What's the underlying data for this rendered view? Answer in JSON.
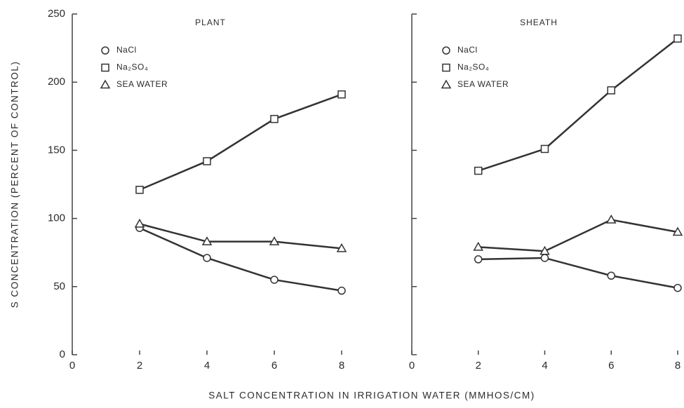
{
  "xlabel": "SALT  CONCENTRATION  IN  IRRIGATION  WATER    (MMHOS/CM)",
  "ylabel": "S  CONCENTRATION   (PERCENT OF CONTROL)",
  "chart_data": [
    {
      "type": "line",
      "title": "PLANT",
      "x": [
        2,
        4,
        6,
        8
      ],
      "xlim": [
        0,
        8
      ],
      "xticks": [
        0,
        2,
        4,
        6,
        8
      ],
      "ylim": [
        0,
        250
      ],
      "yticks": [
        0,
        50,
        100,
        150,
        200,
        250
      ],
      "show_ytick_labels": true,
      "series": [
        {
          "name": "NaCl",
          "color": "#333333",
          "marker": "circle",
          "values": [
            93,
            71,
            55,
            47
          ]
        },
        {
          "name": "Na₂SO₄",
          "color": "#333333",
          "marker": "square",
          "values": [
            121,
            142,
            173,
            191
          ]
        },
        {
          "name": "SEA WATER",
          "color": "#333333",
          "marker": "triangle",
          "values": [
            96,
            83,
            83,
            78
          ]
        }
      ]
    },
    {
      "type": "line",
      "title": "SHEATH",
      "x": [
        2,
        4,
        6,
        8
      ],
      "xlim": [
        0,
        8
      ],
      "xticks": [
        0,
        2,
        4,
        6,
        8
      ],
      "ylim": [
        0,
        250
      ],
      "yticks": [
        0,
        50,
        100,
        150,
        200,
        250
      ],
      "show_ytick_labels": false,
      "series": [
        {
          "name": "NaCl",
          "color": "#333333",
          "marker": "circle",
          "values": [
            70,
            71,
            58,
            49
          ]
        },
        {
          "name": "Na₂SO₄",
          "color": "#333333",
          "marker": "square",
          "values": [
            135,
            151,
            194,
            232
          ]
        },
        {
          "name": "SEA WATER",
          "color": "#333333",
          "marker": "triangle",
          "values": [
            79,
            76,
            99,
            90
          ]
        }
      ]
    }
  ]
}
